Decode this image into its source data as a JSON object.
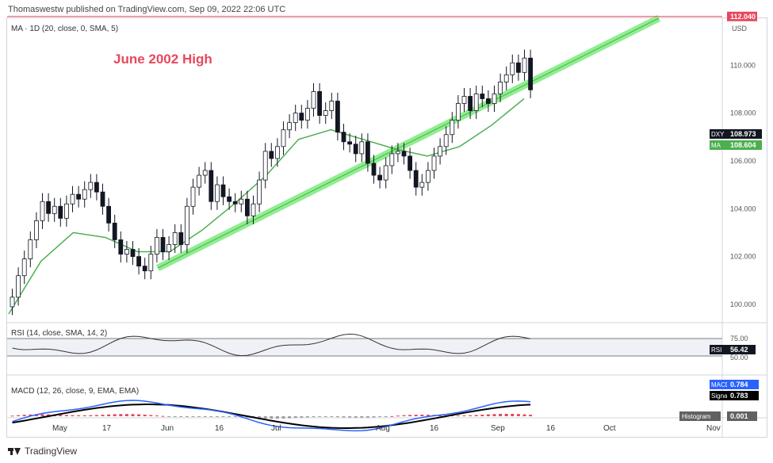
{
  "header": {
    "published": "Thomaswestw published on TradingView.com, Sep 09, 2022 22:06 UTC"
  },
  "indicators": {
    "ma_label": "MA · 1D (20, close, 0, SMA, 5)",
    "rsi_label": "RSI (14, close, SMA, 14, 2)",
    "macd_label": "MACD (12, 26, close, 9, EMA, EMA)"
  },
  "annotation": {
    "text": "June 2002 High",
    "color": "#e8475c"
  },
  "footer": {
    "brand": "TradingView"
  },
  "colors": {
    "up": "#ffffff",
    "down": "#131722",
    "ma": "#4caf50",
    "trend": "#90ee90",
    "resistance": "#e8475c",
    "macd": "#2962ff",
    "signal": "#000000",
    "hist_pos": "#e8475c",
    "hist_neg": "#9e9e9e"
  },
  "chart_data": {
    "type": "candlestick",
    "currency": "USD",
    "y_range": [
      99.4,
      111.8
    ],
    "y_ticks": [
      "110.000",
      "108.000",
      "106.000",
      "104.000",
      "102.000",
      "100.000"
    ],
    "x_labels": [
      "May",
      "17",
      "Jun",
      "16",
      "Jul",
      "Aug",
      "16",
      "Sep",
      "16",
      "Oct",
      "Nov"
    ],
    "candles_close": [
      100.3,
      101.2,
      101.9,
      102.7,
      103.5,
      104.3,
      103.8,
      104.1,
      103.6,
      104.2,
      104.6,
      104.4,
      104.8,
      105.1,
      104.7,
      104.1,
      103.4,
      102.7,
      102.1,
      102.3,
      102.0,
      101.6,
      101.4,
      102.1,
      102.8,
      102.2,
      102.5,
      103.0,
      102.5,
      104.1,
      104.9,
      105.4,
      105.6,
      104.3,
      105.0,
      104.5,
      104.3,
      104.2,
      104.4,
      103.7,
      104.2,
      105.2,
      106.4,
      106.1,
      106.6,
      107.3,
      107.6,
      108.0,
      107.7,
      108.2,
      108.9,
      107.9,
      108.1,
      108.5,
      107.2,
      106.8,
      106.7,
      106.3,
      106.8,
      105.9,
      105.4,
      105.2,
      105.8,
      106.3,
      106.4,
      106.2,
      105.6,
      104.9,
      105.1,
      105.6,
      106.2,
      106.6,
      107.1,
      107.7,
      108.4,
      108.7,
      108.1,
      108.8,
      108.6,
      108.4,
      108.8,
      109.3,
      109.6,
      110.1,
      109.7,
      110.3,
      108.97
    ],
    "ma_series": [
      99.6,
      101.8,
      103.0,
      102.8,
      102.2,
      102.2,
      103.1,
      104.2,
      105.4,
      106.9,
      107.3,
      106.9,
      106.5,
      106.2,
      106.6,
      107.5,
      108.6
    ],
    "rsi_levels": [
      "75.00",
      "50.00"
    ],
    "macd_levels": [],
    "last_values": {
      "dxy_label": "DXY",
      "dxy": "108.973",
      "ma_label": "MA",
      "ma": "108.604",
      "resistance": "112.040",
      "rsi_label": "RSI",
      "rsi": "56.42",
      "macd_label": "MACD",
      "macd": "0.784",
      "signal_label": "Signal",
      "signal": "0.783",
      "hist_label": "Histogram",
      "hist": "0.001"
    }
  }
}
